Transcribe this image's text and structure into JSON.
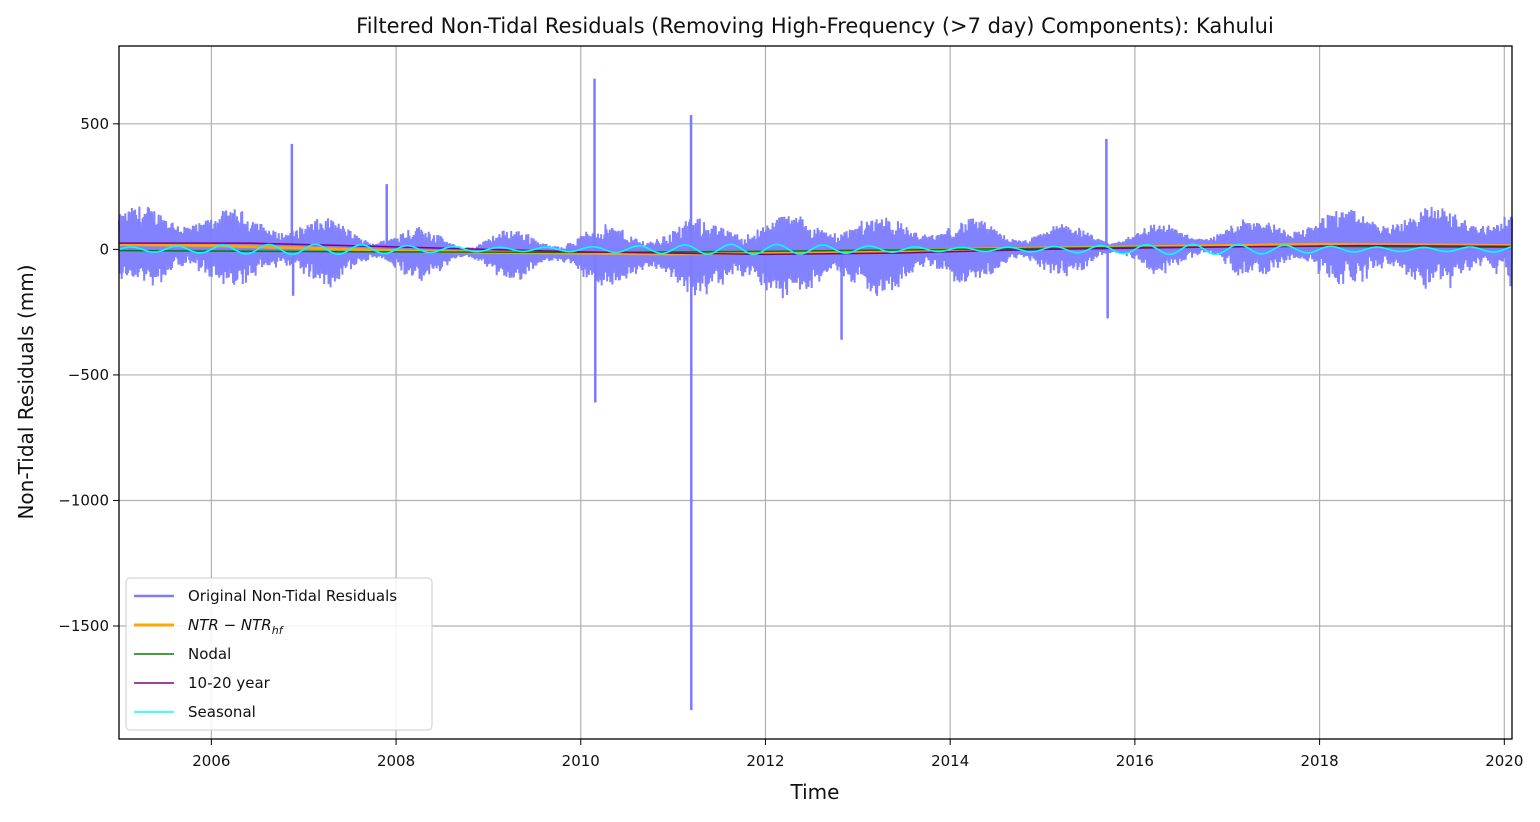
{
  "chart_data": {
    "type": "line",
    "title": "Filtered Non-Tidal Residuals (Removing High-Frequency (>7 day) Components): Kahului",
    "xlabel": "Time",
    "ylabel": "Non-Tidal Residuals (mm)",
    "xlim": [
      "2005-01-01",
      "2020-02-01"
    ],
    "ylim": [
      -1950,
      810
    ],
    "grid": true,
    "legend_position": "lower-left",
    "x_ticks": [
      "2006",
      "2008",
      "2010",
      "2012",
      "2014",
      "2016",
      "2018",
      "2020"
    ],
    "y_ticks": [
      {
        "value": 500,
        "label": "500"
      },
      {
        "value": 0,
        "label": "0"
      },
      {
        "value": -500,
        "label": "−500"
      },
      {
        "value": -1000,
        "label": "−1000"
      },
      {
        "value": -1500,
        "label": "−1500"
      }
    ],
    "series": [
      {
        "name": "Original Non-Tidal Residuals",
        "color": "#7b7bff",
        "band_half_width_mm": 90,
        "spikes": [
          {
            "x": "2006-11-15",
            "y": 420
          },
          {
            "x": "2006-11-20",
            "y": -185
          },
          {
            "x": "2007-11-25",
            "y": 260
          },
          {
            "x": "2010-02-25",
            "y": 680
          },
          {
            "x": "2010-02-28",
            "y": -610
          },
          {
            "x": "2011-03-11",
            "y": 535
          },
          {
            "x": "2011-03-12",
            "y": -1835
          },
          {
            "x": "2012-10-28",
            "y": -360
          },
          {
            "x": "2015-09-10",
            "y": 440
          },
          {
            "x": "2015-09-15",
            "y": -275
          }
        ]
      },
      {
        "name": "NTR − NTR_hf",
        "color": "#ffa500",
        "points": [
          [
            "2005-01-01",
            20
          ],
          [
            "2006-01-01",
            15
          ],
          [
            "2007-01-01",
            5
          ],
          [
            "2008-01-01",
            -5
          ],
          [
            "2009-01-01",
            -12
          ],
          [
            "2010-01-01",
            -15
          ],
          [
            "2011-01-01",
            -18
          ],
          [
            "2012-01-01",
            -15
          ],
          [
            "2013-01-01",
            -10
          ],
          [
            "2014-01-01",
            0
          ],
          [
            "2015-01-01",
            5
          ],
          [
            "2016-01-01",
            10
          ],
          [
            "2017-01-01",
            15
          ],
          [
            "2018-01-01",
            20
          ],
          [
            "2019-01-01",
            18
          ],
          [
            "2020-02-01",
            15
          ]
        ]
      },
      {
        "name": "Nodal",
        "color": "#008000",
        "points": [
          [
            "2005-01-01",
            -5
          ],
          [
            "2008-01-01",
            -10
          ],
          [
            "2010-01-01",
            -12
          ],
          [
            "2012-01-01",
            -8
          ],
          [
            "2014-01-01",
            0
          ],
          [
            "2016-01-01",
            8
          ],
          [
            "2018-01-01",
            12
          ],
          [
            "2020-02-01",
            8
          ]
        ]
      },
      {
        "name": "10-20 year",
        "color": "#800080",
        "points": [
          [
            "2005-01-01",
            25
          ],
          [
            "2006-06-01",
            25
          ],
          [
            "2008-01-01",
            10
          ],
          [
            "2010-01-01",
            -10
          ],
          [
            "2012-01-01",
            -20
          ],
          [
            "2013-06-01",
            -15
          ],
          [
            "2015-01-01",
            0
          ],
          [
            "2017-01-01",
            10
          ],
          [
            "2018-06-01",
            15
          ],
          [
            "2020-02-01",
            12
          ]
        ]
      },
      {
        "name": "Seasonal",
        "color": "#00ffff",
        "amplitude_mm": 20,
        "period_months": 6
      }
    ]
  }
}
